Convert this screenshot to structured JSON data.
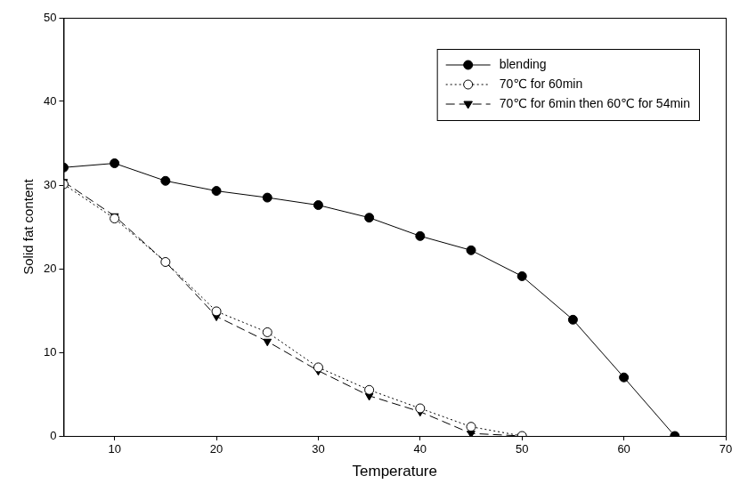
{
  "chart_data": {
    "type": "line",
    "x_label": "Temperature",
    "y_label": "Solid fat content",
    "x": [
      5,
      10,
      15,
      20,
      25,
      30,
      35,
      40,
      45,
      50,
      55,
      60,
      65
    ],
    "series": [
      {
        "name": "blending",
        "color": "#000000",
        "marker": "circle",
        "line_style": "solid",
        "values": [
          32.1,
          32.6,
          30.5,
          29.3,
          28.5,
          27.6,
          26.1,
          23.9,
          22.2,
          19.1,
          13.9,
          7.0,
          0
        ]
      },
      {
        "name": "70℃ for 60min",
        "color": "#000000",
        "marker": "open_circle",
        "line_style": "dotted",
        "values": [
          30.1,
          26.0,
          20.8,
          14.9,
          12.4,
          8.2,
          5.5,
          3.3,
          1.1,
          0,
          null,
          null,
          null
        ]
      },
      {
        "name": "70℃ for 6min then 60℃ for 54min",
        "color": "#000000",
        "marker": "triangle_down",
        "line_style": "dashed",
        "values": [
          30.4,
          26.3,
          20.8,
          14.3,
          11.3,
          7.8,
          4.8,
          2.9,
          0.3,
          0,
          null,
          null,
          null
        ]
      }
    ],
    "xlim": [
      5,
      70
    ],
    "xticks": [
      10,
      20,
      30,
      40,
      50,
      60,
      70
    ],
    "ylim": [
      0,
      50
    ],
    "yticks": [
      0,
      10,
      20,
      30,
      40,
      50
    ],
    "grid": false,
    "legend": "upper right"
  }
}
